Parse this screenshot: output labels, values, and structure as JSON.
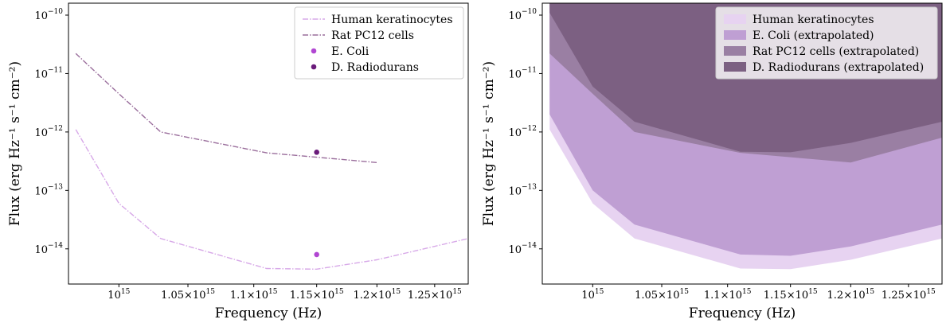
{
  "chart_data": [
    {
      "type": "line",
      "xlabel": "Frequency (Hz)",
      "ylabel": "Flux (erg Hz⁻¹ s⁻¹ cm⁻²)",
      "xscale": "log",
      "yscale": "log",
      "xlim": [
        965000000000000.0,
        1280000000000000.0
      ],
      "ylim": [
        2.5e-15,
        1.6e-10
      ],
      "x_ticks": [
        {
          "value": 1000000000000000.0,
          "base": "10",
          "exp": "15"
        },
        {
          "value": 1050000000000000.0,
          "base": "1.05×10",
          "exp": "15"
        },
        {
          "value": 1100000000000000.0,
          "base": "1.1×10",
          "exp": "15"
        },
        {
          "value": 1150000000000000.0,
          "base": "1.15×10",
          "exp": "15"
        },
        {
          "value": 1200000000000000.0,
          "base": "1.2×10",
          "exp": "15"
        },
        {
          "value": 1250000000000000.0,
          "base": "1.25×10",
          "exp": "15"
        }
      ],
      "y_ticks": [
        {
          "value": 1e-14,
          "base": "10",
          "exp": "−14"
        },
        {
          "value": 1e-13,
          "base": "10",
          "exp": "−13"
        },
        {
          "value": 1e-12,
          "base": "10",
          "exp": "−12"
        },
        {
          "value": 1e-11,
          "base": "10",
          "exp": "−11"
        },
        {
          "value": 1e-10,
          "base": "10",
          "exp": "−10"
        }
      ],
      "legend_position": "top-right",
      "series": [
        {
          "name": "Human keratinocytes",
          "kind": "line",
          "color": "#d7a8e8",
          "x": [
            970000000000000.0,
            1000000000000000.0,
            1030000000000000.0,
            1110000000000000.0,
            1150000000000000.0,
            1200000000000000.0,
            1280000000000000.0
          ],
          "y": [
            1.1e-12,
            6e-14,
            1.5e-14,
            4.6e-15,
            4.5e-15,
            6.5e-15,
            1.5e-14
          ]
        },
        {
          "name": "Rat PC12 cells",
          "kind": "line",
          "color": "#9a6e9c",
          "x": [
            970000000000000.0,
            1000000000000000.0,
            1030000000000000.0,
            1110000000000000.0,
            1150000000000000.0,
            1200000000000000.0
          ],
          "y": [
            2.2e-11,
            4.5e-12,
            1e-12,
            4.4e-13,
            3.7e-13,
            3e-13
          ]
        },
        {
          "name": "E. Coli",
          "kind": "scatter",
          "color": "#b146d2",
          "x": [
            1150000000000000.0
          ],
          "y": [
            8e-15
          ]
        },
        {
          "name": "D. Radiodurans",
          "kind": "scatter",
          "color": "#6a1b7a",
          "x": [
            1150000000000000.0
          ],
          "y": [
            4.5e-13
          ]
        }
      ]
    },
    {
      "type": "area",
      "xlabel": "Frequency (Hz)",
      "ylabel": "Flux (erg Hz⁻¹ s⁻¹ cm⁻²)",
      "xscale": "log",
      "yscale": "log",
      "xlim": [
        965000000000000.0,
        1280000000000000.0
      ],
      "ylim": [
        2.5e-15,
        1.6e-10
      ],
      "x_ticks": [
        {
          "value": 1000000000000000.0,
          "base": "10",
          "exp": "15"
        },
        {
          "value": 1050000000000000.0,
          "base": "1.05×10",
          "exp": "15"
        },
        {
          "value": 1100000000000000.0,
          "base": "1.1×10",
          "exp": "15"
        },
        {
          "value": 1150000000000000.0,
          "base": "1.15×10",
          "exp": "15"
        },
        {
          "value": 1200000000000000.0,
          "base": "1.2×10",
          "exp": "15"
        },
        {
          "value": 1250000000000000.0,
          "base": "1.25×10",
          "exp": "15"
        }
      ],
      "y_ticks": [
        {
          "value": 1e-14,
          "base": "10",
          "exp": "−14"
        },
        {
          "value": 1e-13,
          "base": "10",
          "exp": "−13"
        },
        {
          "value": 1e-12,
          "base": "10",
          "exp": "−12"
        },
        {
          "value": 1e-11,
          "base": "10",
          "exp": "−11"
        },
        {
          "value": 1e-10,
          "base": "10",
          "exp": "−10"
        }
      ],
      "legend_position": "top-right",
      "series": [
        {
          "name": "Human keratinocytes",
          "color": "#e7d3f1",
          "x": [
            970000000000000.0,
            1000000000000000.0,
            1030000000000000.0,
            1110000000000000.0,
            1150000000000000.0,
            1200000000000000.0,
            1280000000000000.0
          ],
          "y": [
            1.1e-12,
            6e-14,
            1.5e-14,
            4.6e-15,
            4.5e-15,
            6.5e-15,
            1.5e-14
          ]
        },
        {
          "name": "E. Coli (extrapolated)",
          "color": "#bf9fd3",
          "x": [
            970000000000000.0,
            1000000000000000.0,
            1030000000000000.0,
            1110000000000000.0,
            1150000000000000.0,
            1200000000000000.0,
            1280000000000000.0
          ],
          "y": [
            2e-12,
            1e-13,
            2.6e-14,
            8e-15,
            7.6e-15,
            1.1e-14,
            2.6e-14
          ]
        },
        {
          "name": "Rat PC12 cells (extrapolated)",
          "color": "#9a7fa3",
          "x": [
            970000000000000.0,
            1000000000000000.0,
            1030000000000000.0,
            1110000000000000.0,
            1150000000000000.0,
            1200000000000000.0,
            1280000000000000.0
          ],
          "y": [
            2.2e-11,
            4.5e-12,
            1e-12,
            4.4e-13,
            3.7e-13,
            3e-13,
            8e-13
          ]
        },
        {
          "name": "D. Radiodurans (extrapolated)",
          "color": "#7c6082",
          "x": [
            970000000000000.0,
            1000000000000000.0,
            1030000000000000.0,
            1110000000000000.0,
            1150000000000000.0,
            1200000000000000.0,
            1280000000000000.0
          ],
          "y": [
            1.1e-10,
            6e-12,
            1.5e-12,
            4.6e-13,
            4.5e-13,
            6.5e-13,
            1.5e-12
          ]
        }
      ]
    }
  ]
}
